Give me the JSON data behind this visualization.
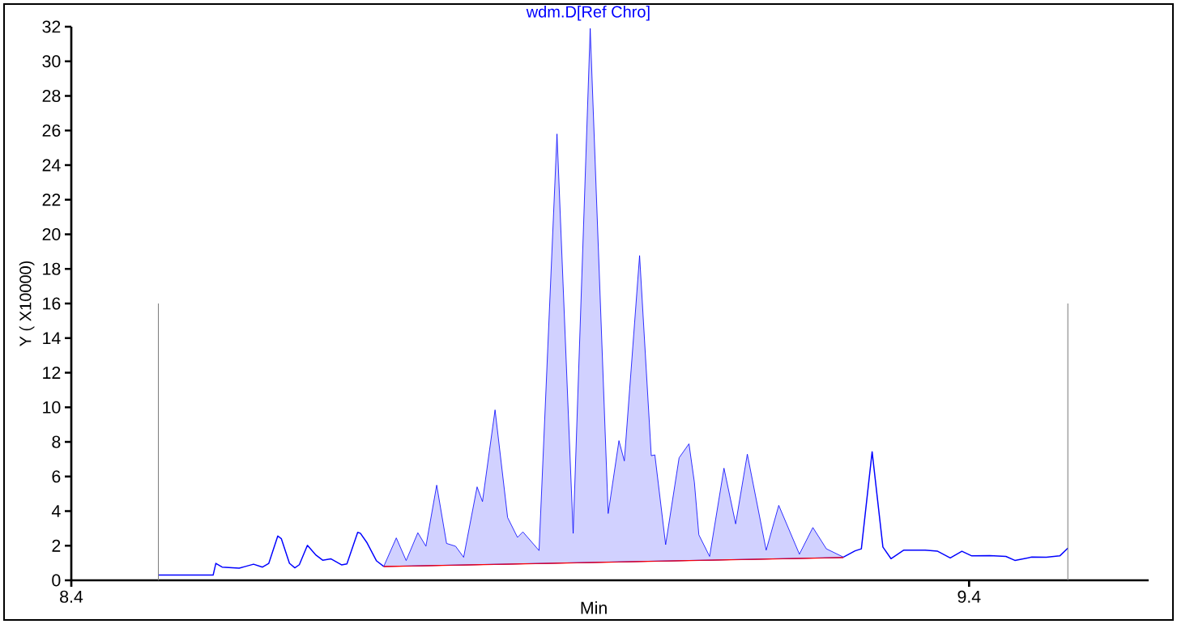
{
  "chart_data": {
    "type": "line",
    "title": "wdm.D[Ref Chro]",
    "xlabel": "Min",
    "ylabel": "Y ( X10000)",
    "xlim": [
      8.4,
      9.6
    ],
    "ylim": [
      0,
      32
    ],
    "xticks": [
      8.4,
      9.4
    ],
    "yticks": [
      0,
      2,
      4,
      6,
      8,
      10,
      12,
      14,
      16,
      18,
      20,
      22,
      24,
      26,
      28,
      30,
      32
    ],
    "grid": false,
    "marker": "none",
    "line_style": "solid",
    "series": [
      {
        "color": "#0000ff",
        "x": [
          8.497,
          8.558,
          8.561,
          8.568,
          8.587,
          8.594,
          8.603,
          8.613,
          8.62,
          8.63,
          8.634,
          8.643,
          8.649,
          8.654,
          8.663,
          8.672,
          8.68,
          8.689,
          8.701,
          8.707,
          8.719,
          8.722,
          8.729,
          8.74,
          8.748
        ],
        "values": [
          0.3,
          0.3,
          0.98,
          0.76,
          0.7,
          0.8,
          0.93,
          0.76,
          0.98,
          2.56,
          2.4,
          0.98,
          0.72,
          0.9,
          2.02,
          1.48,
          1.16,
          1.24,
          0.89,
          0.95,
          2.77,
          2.72,
          2.2,
          1.12,
          0.8
        ]
      },
      {
        "color": "#0000ff",
        "x": [
          9.26,
          9.273,
          9.28,
          9.292,
          9.304,
          9.313,
          9.327,
          9.351,
          9.365,
          9.379,
          9.392,
          9.403,
          9.423,
          9.441,
          9.451,
          9.47,
          9.486,
          9.501,
          9.51
        ],
        "values": [
          1.34,
          1.7,
          1.82,
          7.43,
          1.92,
          1.25,
          1.74,
          1.74,
          1.68,
          1.29,
          1.68,
          1.41,
          1.43,
          1.38,
          1.15,
          1.34,
          1.33,
          1.41,
          1.86
        ]
      },
      {
        "color": "#ff0000",
        "x": [
          8.748,
          9.26
        ],
        "values": [
          0.8,
          1.32
        ]
      },
      {
        "type": "area",
        "color": "#0000ff",
        "x": [
          8.748,
          8.762,
          8.773,
          8.786,
          8.795,
          8.807,
          8.818,
          8.828,
          8.837,
          8.852,
          8.858,
          8.872,
          8.886,
          8.897,
          8.903,
          8.921,
          8.941,
          8.959,
          8.978,
          8.998,
          9.01,
          9.016,
          9.033,
          9.046,
          9.05,
          9.062,
          9.077,
          9.088,
          9.094,
          9.099,
          9.111,
          9.127,
          9.14,
          9.153,
          9.174,
          9.188,
          9.211,
          9.226,
          9.241,
          9.26
        ],
        "values": [
          0.8,
          2.45,
          1.14,
          2.75,
          1.97,
          5.5,
          2.13,
          1.97,
          1.33,
          5.4,
          4.55,
          9.85,
          3.63,
          2.48,
          2.8,
          1.72,
          25.8,
          2.71,
          31.9,
          3.86,
          8.07,
          6.9,
          18.77,
          7.2,
          7.25,
          2.06,
          7.08,
          7.89,
          5.67,
          2.63,
          1.38,
          6.48,
          3.26,
          7.29,
          1.74,
          4.33,
          1.51,
          3.05,
          1.82,
          1.34
        ]
      }
    ],
    "ref_lines": [
      {
        "axis": "x",
        "value": 8.497,
        "color": "#808080"
      },
      {
        "axis": "x",
        "value": 9.51,
        "color": "#808080"
      }
    ]
  }
}
